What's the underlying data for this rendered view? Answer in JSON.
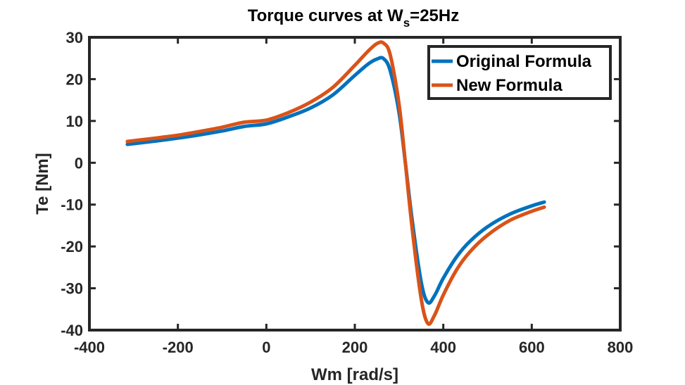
{
  "chart_data": {
    "type": "line",
    "title": "Torque curves at W",
    "title_subscript": "s",
    "title_suffix": "=25Hz",
    "xlabel": "Wm [rad/s]",
    "ylabel": "Te [Nm]",
    "xlim": [
      -400,
      800
    ],
    "ylim": [
      -40,
      30
    ],
    "xticks": [
      -400,
      -200,
      0,
      200,
      400,
      600,
      800
    ],
    "yticks": [
      -40,
      -30,
      -20,
      -10,
      0,
      10,
      20,
      30
    ],
    "grid": false,
    "legend_position": "top-right",
    "sync_speed": 314.16,
    "series": [
      {
        "name": "Original Formula",
        "color": "#0072BD",
        "x": [
          -314.2,
          -250,
          -200,
          -150,
          -100,
          -50,
          0,
          50,
          100,
          150,
          200,
          230,
          250,
          265,
          280,
          300,
          314.2,
          330,
          350,
          365,
          380,
          400,
          430,
          460,
          500,
          550,
          600,
          628.3
        ],
        "y": [
          4.4,
          5.2,
          5.9,
          6.7,
          7.6,
          8.7,
          9.3,
          11.0,
          13.1,
          16.2,
          20.9,
          23.6,
          24.8,
          24.9,
          22.0,
          12.0,
          0.0,
          -14.0,
          -28.5,
          -33.4,
          -31.8,
          -27.6,
          -22.5,
          -18.8,
          -15.3,
          -12.3,
          -10.3,
          -9.4
        ]
      },
      {
        "name": "New Formula",
        "color": "#D95319",
        "x": [
          -314.2,
          -250,
          -200,
          -150,
          -100,
          -50,
          0,
          50,
          100,
          150,
          200,
          230,
          250,
          265,
          280,
          300,
          314.2,
          330,
          350,
          365,
          380,
          400,
          430,
          460,
          500,
          550,
          600,
          628.3
        ],
        "y": [
          5.1,
          5.9,
          6.6,
          7.5,
          8.5,
          9.7,
          10.2,
          12.0,
          14.5,
          18.0,
          23.3,
          26.7,
          28.5,
          28.6,
          25.8,
          14.0,
          0.0,
          -16.0,
          -32.5,
          -38.4,
          -36.5,
          -31.6,
          -25.6,
          -21.3,
          -17.3,
          -13.8,
          -11.6,
          -10.6
        ]
      }
    ]
  }
}
